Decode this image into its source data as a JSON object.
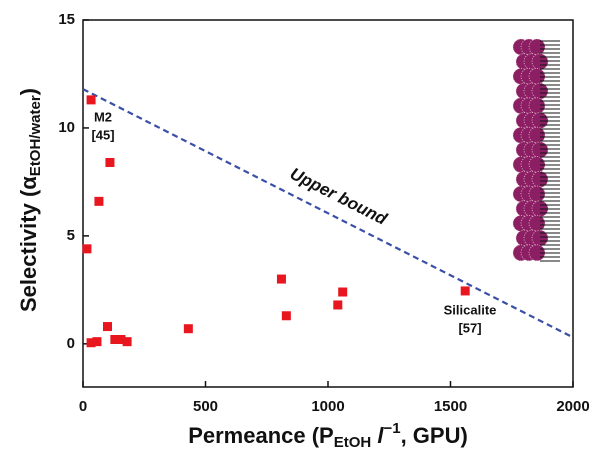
{
  "chart_data": {
    "type": "scatter",
    "x_label": {
      "parts": [
        "Permeance (P",
        "EtOH",
        " l",
        "−1",
        ", GPU)"
      ]
    },
    "y_label": {
      "parts": [
        "Selectivity (α",
        "EtOH/water",
        ")"
      ]
    },
    "series": [
      {
        "name": null,
        "color": "#e8161e",
        "x": [
          33,
          16,
          65,
          110,
          100,
          33,
          57,
          130,
          155,
          180,
          430,
          810,
          830,
          1040,
          1060,
          1560
        ],
        "values": [
          11.3,
          4.4,
          6.6,
          8.4,
          0.8,
          0.05,
          0.1,
          0.2,
          0.2,
          0.1,
          0.7,
          3.0,
          1.3,
          1.8,
          2.4,
          2.45
        ]
      }
    ],
    "upper_bound": {
      "name": "Upper bound",
      "color": "#3a4fa6",
      "x": [
        0,
        2000
      ],
      "values": [
        11.8,
        0.3
      ]
    },
    "annotations": [
      "M2",
      "[45]",
      "Silicalite",
      "[57]"
    ],
    "xlim": [
      0,
      2000
    ],
    "xticks": [
      0,
      500,
      1000,
      1500,
      2000
    ],
    "ylim": [
      -2,
      15
    ],
    "yticks": [
      0,
      5,
      10,
      15
    ]
  }
}
